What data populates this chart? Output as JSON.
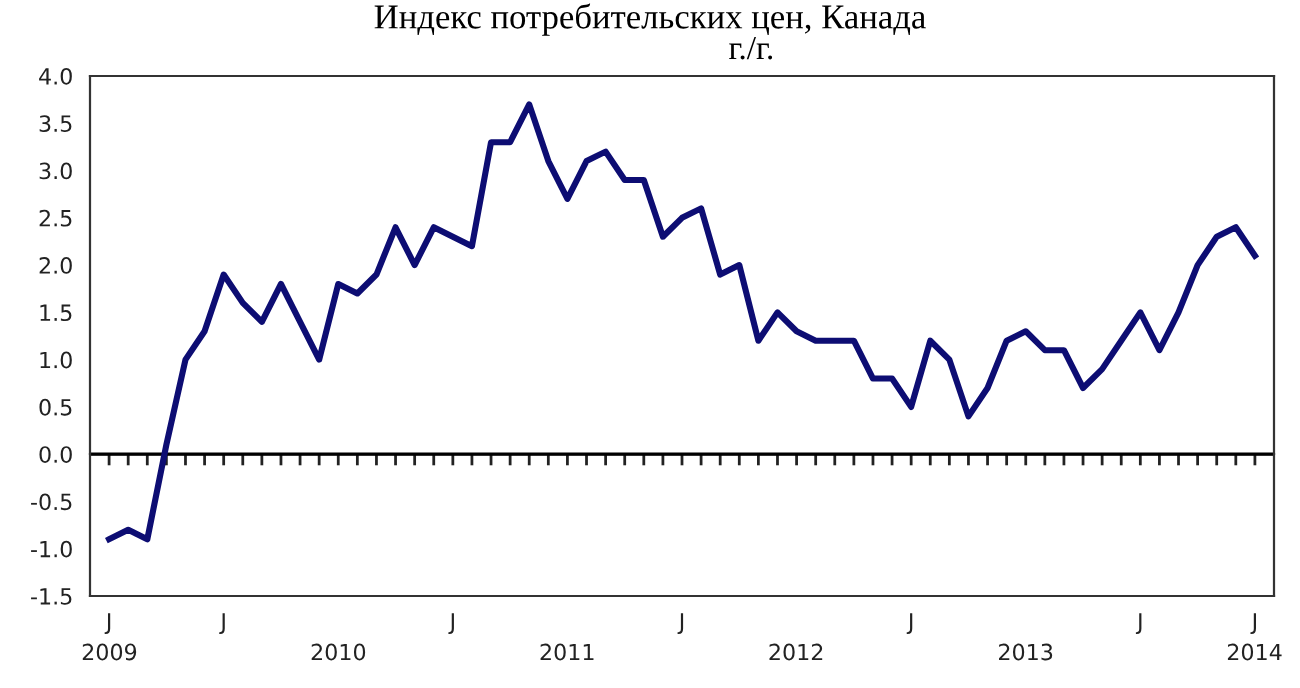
{
  "chart_data": {
    "type": "line",
    "title": "Индекс потребительских цен, Канада",
    "subtitle": "г./г.",
    "categories": [
      "J",
      null,
      null,
      null,
      null,
      null,
      "J",
      null,
      null,
      null,
      null,
      null,
      null,
      null,
      null,
      null,
      null,
      null,
      "J",
      null,
      null,
      null,
      null,
      null,
      null,
      null,
      null,
      null,
      null,
      null,
      "J",
      null,
      null,
      null,
      null,
      null,
      null,
      null,
      null,
      null,
      null,
      null,
      "J",
      null,
      null,
      null,
      null,
      null,
      null,
      null,
      null,
      null,
      null,
      null,
      "J",
      null,
      null,
      null,
      null,
      null,
      "J"
    ],
    "series": [
      {
        "color": "#0d0d73",
        "values": [
          -0.9,
          -0.8,
          -0.9,
          0.1,
          1.0,
          1.3,
          1.9,
          1.6,
          1.4,
          1.8,
          1.4,
          1.0,
          1.8,
          1.7,
          1.9,
          2.4,
          2.0,
          2.4,
          2.3,
          2.2,
          3.3,
          3.3,
          3.7,
          3.1,
          2.7,
          3.1,
          3.2,
          2.9,
          2.9,
          2.3,
          2.5,
          2.6,
          1.9,
          2.0,
          1.2,
          1.5,
          1.3,
          1.2,
          1.2,
          1.2,
          0.8,
          0.8,
          0.5,
          1.2,
          1.0,
          0.4,
          0.7,
          1.2,
          1.3,
          1.1,
          1.1,
          0.7,
          0.9,
          1.2,
          1.5,
          1.1,
          1.5,
          2.0,
          2.3,
          2.4,
          2.1
        ]
      }
    ],
    "x2lim": [
      "2008-12",
      "2014-02"
    ],
    "x2ticks": [
      {
        "value": "2009-01",
        "label": "2009"
      },
      {
        "value": "2010-01",
        "label": "2010"
      },
      {
        "value": "2011-01",
        "label": "2011"
      },
      {
        "value": "2012-01",
        "label": "2012"
      },
      {
        "value": "2013-01",
        "label": "2013"
      },
      {
        "value": "2014-01",
        "label": "2014"
      }
    ],
    "ylim": [
      -1.5,
      4.0
    ],
    "yticks": [
      {
        "value": -1.5,
        "label": "-1.5"
      },
      {
        "value": -1.0,
        "label": "-1.0"
      },
      {
        "value": -0.5,
        "label": "-0.5"
      },
      {
        "value": 0,
        "label": "0.0"
      },
      {
        "value": 0.5,
        "label": "0.5"
      },
      {
        "value": 1,
        "label": "1.0"
      },
      {
        "value": 1.5,
        "label": "1.5"
      },
      {
        "value": 2,
        "label": "2.0"
      },
      {
        "value": 2.5,
        "label": "2.5"
      },
      {
        "value": 3,
        "label": "3.0"
      },
      {
        "value": 3.5,
        "label": "3.5"
      },
      {
        "value": 4,
        "label": "4.0"
      }
    ],
    "ref_lines": [
      {
        "axis": "y",
        "value": 0,
        "color": "#000000"
      }
    ],
    "grid": false,
    "legend": false,
    "marker": "none",
    "line_style": "solid"
  }
}
